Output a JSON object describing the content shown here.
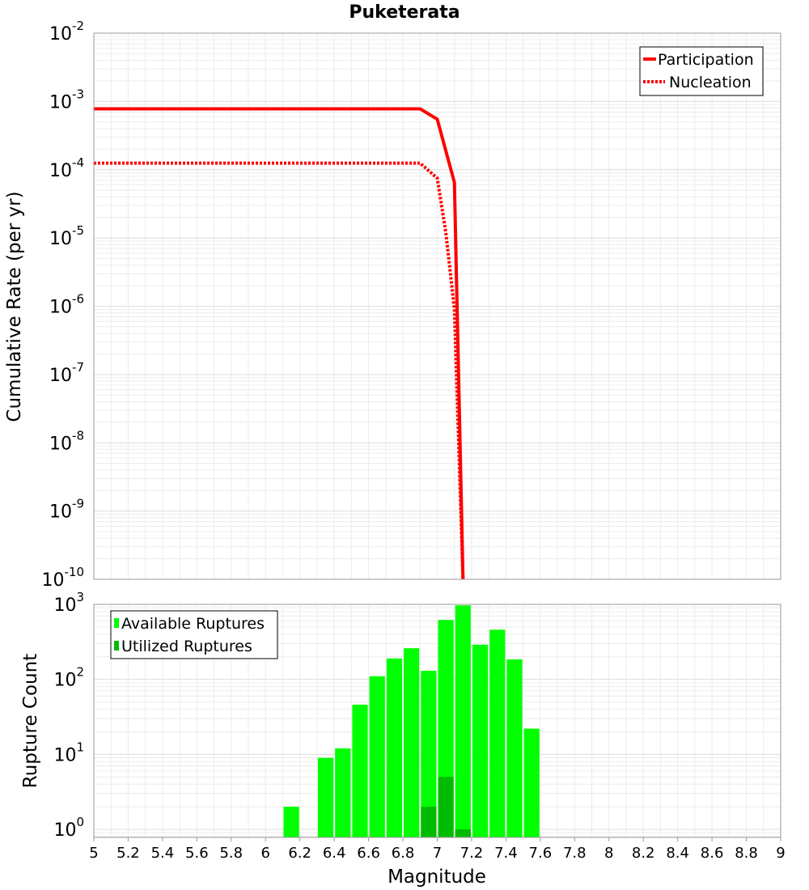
{
  "chart_data": [
    {
      "type": "line",
      "title": "Puketerata",
      "xlabel": "Magnitude",
      "ylabel": "Cumulative Rate (per yr)",
      "yscale": "log",
      "xlim": [
        5,
        9
      ],
      "ylim": [
        1e-10,
        0.01
      ],
      "grid": true,
      "legend": "top-right",
      "y_ticks": [
        {
          "base": "10",
          "exp": "-10"
        },
        {
          "base": "10",
          "exp": "-9"
        },
        {
          "base": "10",
          "exp": "-8"
        },
        {
          "base": "10",
          "exp": "-7"
        },
        {
          "base": "10",
          "exp": "-6"
        },
        {
          "base": "10",
          "exp": "-5"
        },
        {
          "base": "10",
          "exp": "-4"
        },
        {
          "base": "10",
          "exp": "-3"
        },
        {
          "base": "10",
          "exp": "-2"
        }
      ],
      "series": [
        {
          "name": "Participation",
          "color": "#ff0000",
          "style": "solid",
          "x": [
            5.0,
            6.9,
            7.0,
            7.1,
            7.15
          ],
          "y": [
            0.00078,
            0.00078,
            0.00055,
            6.5e-05,
            1e-10
          ]
        },
        {
          "name": "Nucleation",
          "color": "#ff0000",
          "style": "dotted",
          "x": [
            5.0,
            6.9,
            7.0,
            7.05,
            7.1,
            7.15
          ],
          "y": [
            0.000125,
            0.000125,
            7.5e-05,
            1.2e-05,
            9e-07,
            1e-10
          ]
        }
      ]
    },
    {
      "type": "bar",
      "xlabel": "Magnitude",
      "ylabel": "Rupture Count",
      "yscale": "log",
      "xlim": [
        5,
        9
      ],
      "ylim": [
        0.78,
        1000
      ],
      "grid": true,
      "legend": "top-left",
      "x_ticks": [
        "5",
        "5.2",
        "5.4",
        "5.6",
        "5.8",
        "6",
        "6.2",
        "6.4",
        "6.6",
        "6.8",
        "7",
        "7.2",
        "7.4",
        "7.6",
        "7.8",
        "8",
        "8.2",
        "8.4",
        "8.6",
        "8.8",
        "9"
      ],
      "y_ticks": [
        {
          "base": "10",
          "exp": "0"
        },
        {
          "base": "10",
          "exp": "1"
        },
        {
          "base": "10",
          "exp": "2"
        },
        {
          "base": "10",
          "exp": "3"
        }
      ],
      "bin_width": 0.1,
      "series": [
        {
          "name": "Available Ruptures",
          "color": "#00ff00",
          "x": [
            6.15,
            6.35,
            6.45,
            6.55,
            6.65,
            6.75,
            6.85,
            6.95,
            7.05,
            7.15,
            7.25,
            7.35,
            7.45,
            7.55
          ],
          "values": [
            2,
            9,
            12,
            46,
            110,
            190,
            260,
            130,
            620,
            970,
            290,
            460,
            185,
            22
          ]
        },
        {
          "name": "Utilized Ruptures",
          "color": "#00bb00",
          "x": [
            6.95,
            7.05,
            7.15
          ],
          "values": [
            2,
            5,
            1
          ]
        }
      ]
    }
  ]
}
